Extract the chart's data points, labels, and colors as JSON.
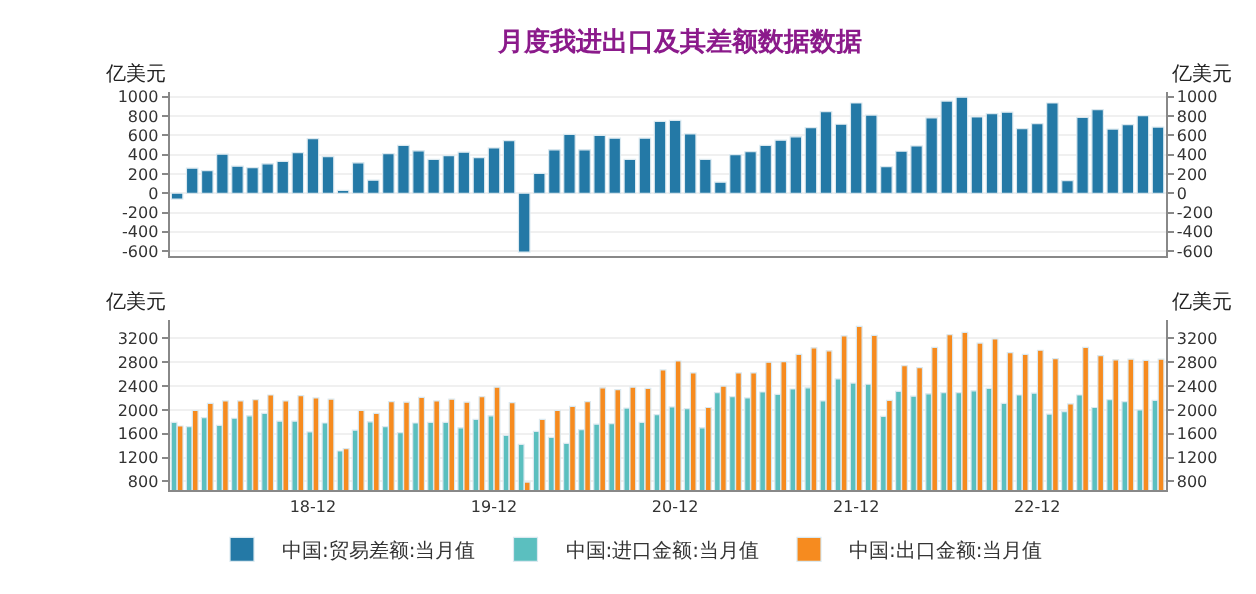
{
  "chart_data": [
    {
      "type": "bar",
      "title": "月度我进出口及其差额数据数据",
      "ylabel": "亿美元",
      "y2label": "亿美元",
      "categories": [
        null,
        null,
        null,
        null,
        null,
        null,
        null,
        null,
        null,
        null,
        null,
        null,
        null,
        null,
        null,
        null,
        null,
        null,
        null,
        null,
        null,
        null,
        null,
        null,
        null,
        null,
        null,
        null,
        null,
        null,
        null,
        null,
        null,
        null,
        null,
        null,
        null,
        null,
        null,
        null,
        null,
        null,
        null,
        null,
        null,
        null,
        null,
        null,
        null,
        null,
        null,
        null,
        null,
        null,
        null,
        null,
        null,
        null,
        null,
        null,
        null,
        null,
        null,
        null,
        null,
        null
      ],
      "series": [
        {
          "name": "中国:贸易差额:当月值",
          "color": "#2479a6",
          "values": [
            -60,
            260,
            235,
            405,
            280,
            265,
            305,
            330,
            420,
            565,
            380,
            30,
            315,
            135,
            410,
            495,
            440,
            350,
            390,
            425,
            370,
            470,
            545,
            -610,
            205,
            450,
            610,
            450,
            600,
            570,
            350,
            570,
            745,
            755,
            615,
            350,
            115,
            400,
            430,
            495,
            550,
            585,
            680,
            845,
            715,
            935,
            810,
            275,
            435,
            490,
            780,
            955,
            995,
            790,
            825,
            840,
            670,
            720,
            935,
            130,
            785,
            865,
            665,
            710,
            805,
            685
          ]
        }
      ],
      "ylim": [
        -650,
        1050
      ],
      "yticks": [
        -600,
        -400,
        -200,
        0,
        200,
        400,
        600,
        800,
        1000
      ],
      "y2lim": [
        -650,
        1050
      ],
      "y2ticks": [
        -600,
        -400,
        -200,
        0,
        200,
        400,
        600,
        800,
        1000
      ],
      "tick_labels": "y",
      "grid": "y",
      "legend": "bottom"
    },
    {
      "type": "bar",
      "ylabel": "亿美元",
      "y2label": "亿美元",
      "categories": [
        null,
        null,
        null,
        null,
        null,
        null,
        null,
        null,
        null,
        "18-12",
        null,
        null,
        null,
        null,
        null,
        null,
        null,
        null,
        null,
        null,
        null,
        "19-12",
        null,
        null,
        null,
        null,
        null,
        null,
        null,
        null,
        null,
        null,
        null,
        "20-12",
        null,
        null,
        null,
        null,
        null,
        null,
        null,
        null,
        null,
        null,
        null,
        "21-12",
        null,
        null,
        null,
        null,
        null,
        null,
        null,
        null,
        null,
        null,
        null,
        "22-12",
        null,
        null,
        null,
        null,
        null,
        null,
        null,
        null
      ],
      "series": [
        {
          "name": "中国:进口金额:当月值",
          "color": "#5bbfbf",
          "values": [
            1790,
            1720,
            1870,
            1740,
            1860,
            1900,
            1940,
            1810,
            1810,
            1630,
            1780,
            1310,
            1660,
            1800,
            1720,
            1620,
            1780,
            1790,
            1790,
            1700,
            1840,
            1900,
            1570,
            1420,
            1640,
            1540,
            1440,
            1670,
            1760,
            1770,
            2030,
            1790,
            1920,
            2050,
            2020,
            1700,
            2290,
            2220,
            2200,
            2300,
            2260,
            2350,
            2370,
            2150,
            2520,
            2450,
            2430,
            1890,
            2310,
            2230,
            2270,
            2290,
            2290,
            2320,
            2360,
            2110,
            2250,
            2280,
            1930,
            1970,
            2250,
            2040,
            2170,
            2140,
            2000,
            2160
          ]
        },
        {
          "name": "中国:出口金额:当月值",
          "color": "#f68b1f",
          "values": [
            1730,
            1990,
            2110,
            2150,
            2150,
            2170,
            2250,
            2150,
            2240,
            2200,
            2180,
            1350,
            1990,
            1940,
            2140,
            2130,
            2210,
            2150,
            2180,
            2130,
            2220,
            2380,
            2120,
            790,
            1840,
            1990,
            2060,
            2140,
            2370,
            2340,
            2380,
            2360,
            2670,
            2820,
            2620,
            2040,
            2400,
            2620,
            2620,
            2800,
            2810,
            2930,
            3040,
            2990,
            3240,
            3400,
            3250,
            2160,
            2740,
            2710,
            3050,
            3260,
            3300,
            3120,
            3190,
            2960,
            2930,
            3000,
            2860,
            2100,
            3050,
            2910,
            2840,
            2850,
            2830,
            2850
          ]
        }
      ],
      "ylim": [
        650,
        3500
      ],
      "yticks": [
        800,
        1200,
        1600,
        2000,
        2400,
        2800,
        3200
      ],
      "y2lim": [
        650,
        3500
      ],
      "y2ticks": [
        800,
        1200,
        1600,
        2000,
        2400,
        2800,
        3200
      ],
      "grid": "y",
      "legend": "bottom"
    }
  ]
}
